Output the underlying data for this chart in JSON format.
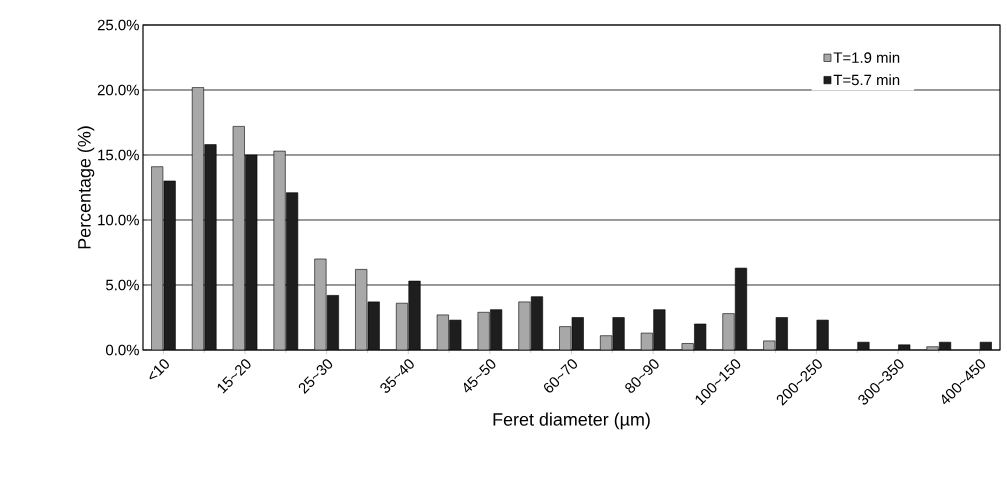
{
  "chart_data": {
    "type": "bar",
    "xlabel": "Feret diameter (µm)",
    "ylabel": "Percentage (%)",
    "categories": [
      "<10",
      null,
      "15~20",
      null,
      "25~30",
      null,
      "35~40",
      null,
      "45~50",
      null,
      "60~70",
      null,
      "80~90",
      null,
      "100~150",
      null,
      "200~250",
      null,
      "300~350",
      null,
      "400~450"
    ],
    "series": [
      {
        "name": "T=1.9 min",
        "color": "#a8a8a8",
        "values": [
          14.1,
          20.2,
          17.2,
          15.3,
          7.0,
          6.2,
          3.6,
          2.7,
          2.9,
          3.7,
          1.8,
          1.1,
          1.3,
          0.5,
          2.8,
          0.7,
          null,
          null,
          null,
          0.25,
          null
        ]
      },
      {
        "name": "T=5.7 min",
        "color": "#1e1e1e",
        "values": [
          13.0,
          15.8,
          15.0,
          12.1,
          4.2,
          3.7,
          5.3,
          2.3,
          3.1,
          4.1,
          2.5,
          2.5,
          3.1,
          2.0,
          6.3,
          2.5,
          2.3,
          0.6,
          0.4,
          0.6,
          0.6
        ]
      }
    ],
    "ylim": [
      0,
      25
    ],
    "yticks": [
      {
        "value": 0,
        "label": "0.0%"
      },
      {
        "value": 5,
        "label": "5.0%"
      },
      {
        "value": 10,
        "label": "10.0%"
      },
      {
        "value": 15,
        "label": "15.0%"
      },
      {
        "value": 20,
        "label": "20.0%"
      },
      {
        "value": 25,
        "label": "25.0%"
      }
    ],
    "grid": "y",
    "legend": "top right"
  }
}
